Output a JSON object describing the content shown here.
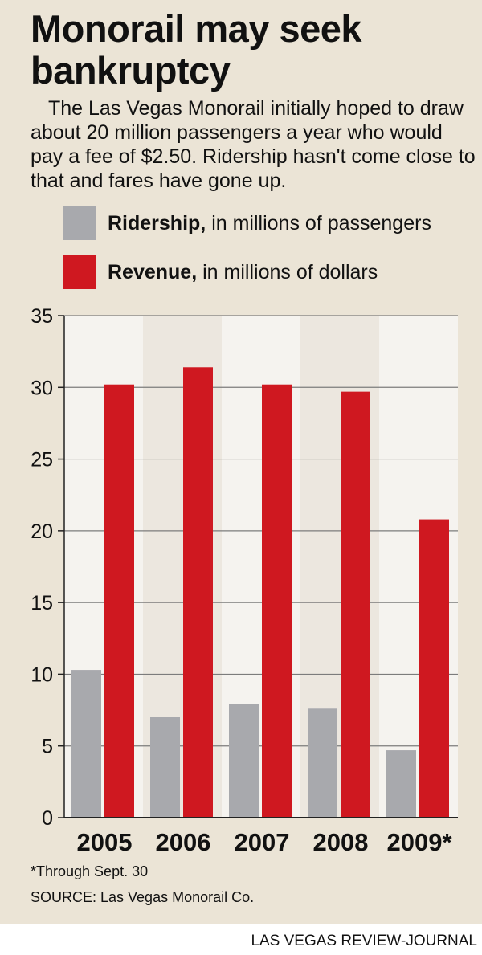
{
  "headline": {
    "line1": "Monorail may seek",
    "line2": "bankruptcy"
  },
  "intro": "The Las Vegas Monorail initially hoped to draw about 20 million passengers a year who would pay a fee of $2.50. Ridership hasn't come close to that and fares have gone up.",
  "legend": [
    {
      "bold": "Ridership,",
      "text": " in millions of passengers",
      "color": "#a8a9ad"
    },
    {
      "bold": "Revenue,",
      "text": " in millions of dollars",
      "color": "#cf1820"
    }
  ],
  "chart_data": {
    "type": "bar",
    "categories": [
      "2005",
      "2006",
      "2007",
      "2008",
      "2009*"
    ],
    "series": [
      {
        "name": "Ridership",
        "values": [
          10.3,
          7.0,
          7.9,
          7.6,
          4.7
        ],
        "color": "#a8a9ad"
      },
      {
        "name": "Revenue",
        "values": [
          30.2,
          31.4,
          30.2,
          29.7,
          20.8
        ],
        "color": "#cf1820"
      }
    ],
    "ylim": [
      0,
      35
    ],
    "yticks": [
      0,
      5,
      10,
      15,
      20,
      25,
      30,
      35
    ],
    "grid": true
  },
  "footnote": "*Through Sept. 30",
  "source": "SOURCE: Las Vegas Monorail Co.",
  "credit": "LAS VEGAS REVIEW-JOURNAL"
}
